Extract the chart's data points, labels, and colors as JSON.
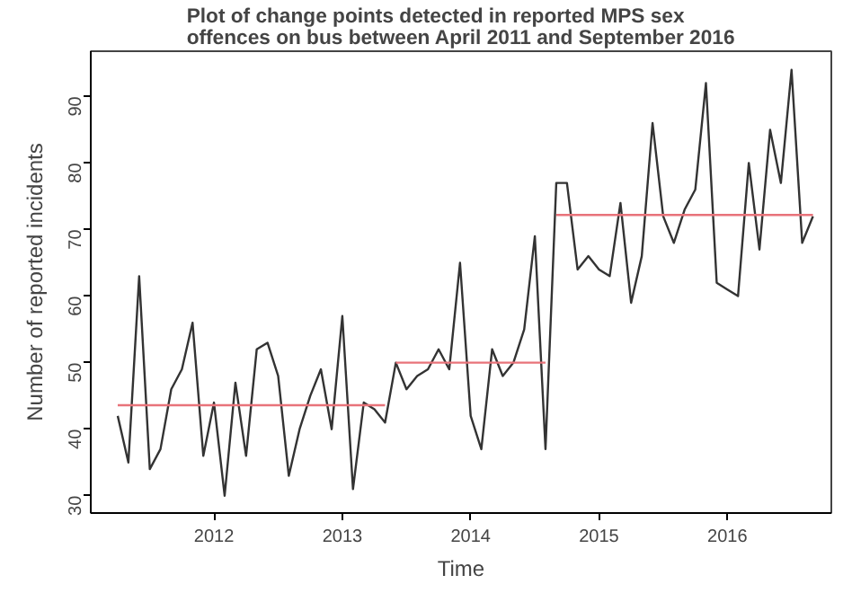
{
  "chart_data": {
    "type": "line",
    "title": "Plot of change points detected in reported MPS sex offences on bus between April 2011 and September 2016",
    "xlabel": "Time",
    "ylabel": "Number of reported incidents",
    "x": [
      2011.25,
      2011.333,
      2011.417,
      2011.5,
      2011.583,
      2011.667,
      2011.75,
      2011.833,
      2011.917,
      2012.0,
      2012.083,
      2012.167,
      2012.25,
      2012.333,
      2012.417,
      2012.5,
      2012.583,
      2012.667,
      2012.75,
      2012.833,
      2012.917,
      2013.0,
      2013.083,
      2013.167,
      2013.25,
      2013.333,
      2013.417,
      2013.5,
      2013.583,
      2013.667,
      2013.75,
      2013.833,
      2013.917,
      2014.0,
      2014.083,
      2014.167,
      2014.25,
      2014.333,
      2014.417,
      2014.5,
      2014.583,
      2014.667,
      2014.75,
      2014.833,
      2014.917,
      2015.0,
      2015.083,
      2015.167,
      2015.25,
      2015.333,
      2015.417,
      2015.5,
      2015.583,
      2015.667,
      2015.75,
      2015.833,
      2015.917,
      2016.0,
      2016.083,
      2016.167,
      2016.25,
      2016.333,
      2016.417,
      2016.5,
      2016.583,
      2016.667
    ],
    "series": [
      {
        "color": "#333333",
        "values": [
          42,
          35,
          63,
          34,
          37,
          46,
          49,
          56,
          36,
          44,
          30,
          47,
          36,
          52,
          53,
          48,
          33,
          40,
          45,
          49,
          40,
          57,
          31,
          44,
          43,
          41,
          50,
          46,
          48,
          49,
          52,
          49,
          65,
          42,
          37,
          52,
          48,
          50,
          55,
          69,
          37,
          77,
          77,
          64,
          66,
          64,
          63,
          74,
          59,
          66,
          86,
          72,
          68,
          73,
          76,
          92,
          62,
          61,
          60,
          80,
          67,
          85,
          77,
          94,
          68,
          72
        ]
      },
      {
        "type": "line",
        "color": "#e8737a",
        "x": [
          2011.25,
          2013.333
        ],
        "values": [
          43.6,
          43.6
        ]
      },
      {
        "type": "line",
        "color": "#e8737a",
        "x": [
          2013.417,
          2014.583
        ],
        "values": [
          50,
          50
        ]
      },
      {
        "type": "line",
        "color": "#e8737a",
        "x": [
          2014.667,
          2016.667
        ],
        "values": [
          72.2,
          72.2
        ]
      }
    ],
    "xlim": [
      2011.04,
      2016.81
    ],
    "ylim": [
      27.4,
      96.8
    ],
    "xticks": [
      2012,
      2013,
      2014,
      2015,
      2016
    ],
    "yticks": [
      30,
      40,
      50,
      60,
      70,
      80,
      90
    ],
    "grid": false,
    "marker": "none",
    "line_style": "solid"
  }
}
